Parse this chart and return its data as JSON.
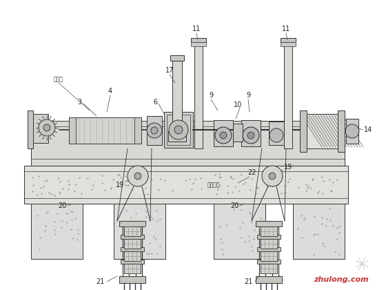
{
  "bg_color": "#ffffff",
  "line_color": "#333333",
  "lw": 0.7,
  "fig_w": 5.6,
  "fig_h": 4.2,
  "dpi": 100,
  "xlim": [
    0,
    560
  ],
  "ylim": [
    0,
    420
  ],
  "watermark_text": "zhulong.com",
  "watermark_color": "#cc3333",
  "label_color": "#222222",
  "concrete_color": "#e8e8e8",
  "machine_color": "#d0d0d0",
  "frame_color": "#c8c8c8"
}
